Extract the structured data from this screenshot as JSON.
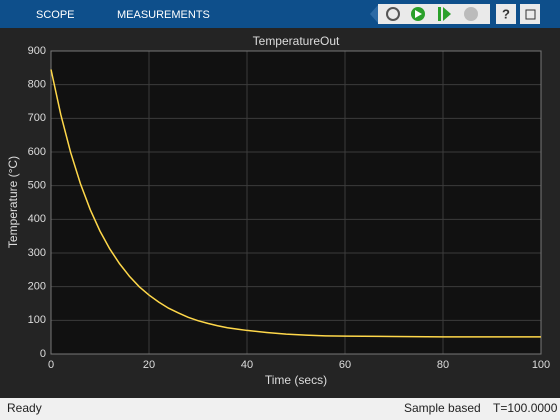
{
  "toolbar": {
    "tabs": [
      "SCOPE",
      "MEASUREMENTS"
    ]
  },
  "chart_data": {
    "type": "line",
    "title": "TemperatureOut",
    "x_label": "Time (secs)",
    "y_label": "Temperature (°C)",
    "x": [
      0,
      2,
      4,
      6,
      8,
      10,
      12,
      14,
      16,
      18,
      20,
      22,
      24,
      26,
      28,
      30,
      32,
      34,
      36,
      38,
      40,
      44,
      48,
      52,
      56,
      60,
      70,
      80,
      90,
      100
    ],
    "series": [
      {
        "name": "TemperatureOut",
        "color": "#ffd84a",
        "values": [
          845,
          711,
          599,
          506,
          429,
          365,
          312,
          268,
          231,
          200,
          175,
          154,
          136,
          122,
          109,
          99,
          91,
          84,
          78,
          74,
          70,
          64,
          59,
          56,
          54,
          53,
          52,
          51,
          51,
          51
        ]
      }
    ],
    "xlim": [
      0,
      100
    ],
    "xticks": [
      0,
      20,
      40,
      60,
      80,
      100
    ],
    "ylim": [
      0,
      900
    ],
    "yticks": [
      0,
      100,
      200,
      300,
      400,
      500,
      600,
      700,
      800,
      900
    ],
    "grid": true
  },
  "status_bar": {
    "left": "Ready",
    "mode": "Sample based",
    "time": "T=100.0000"
  }
}
